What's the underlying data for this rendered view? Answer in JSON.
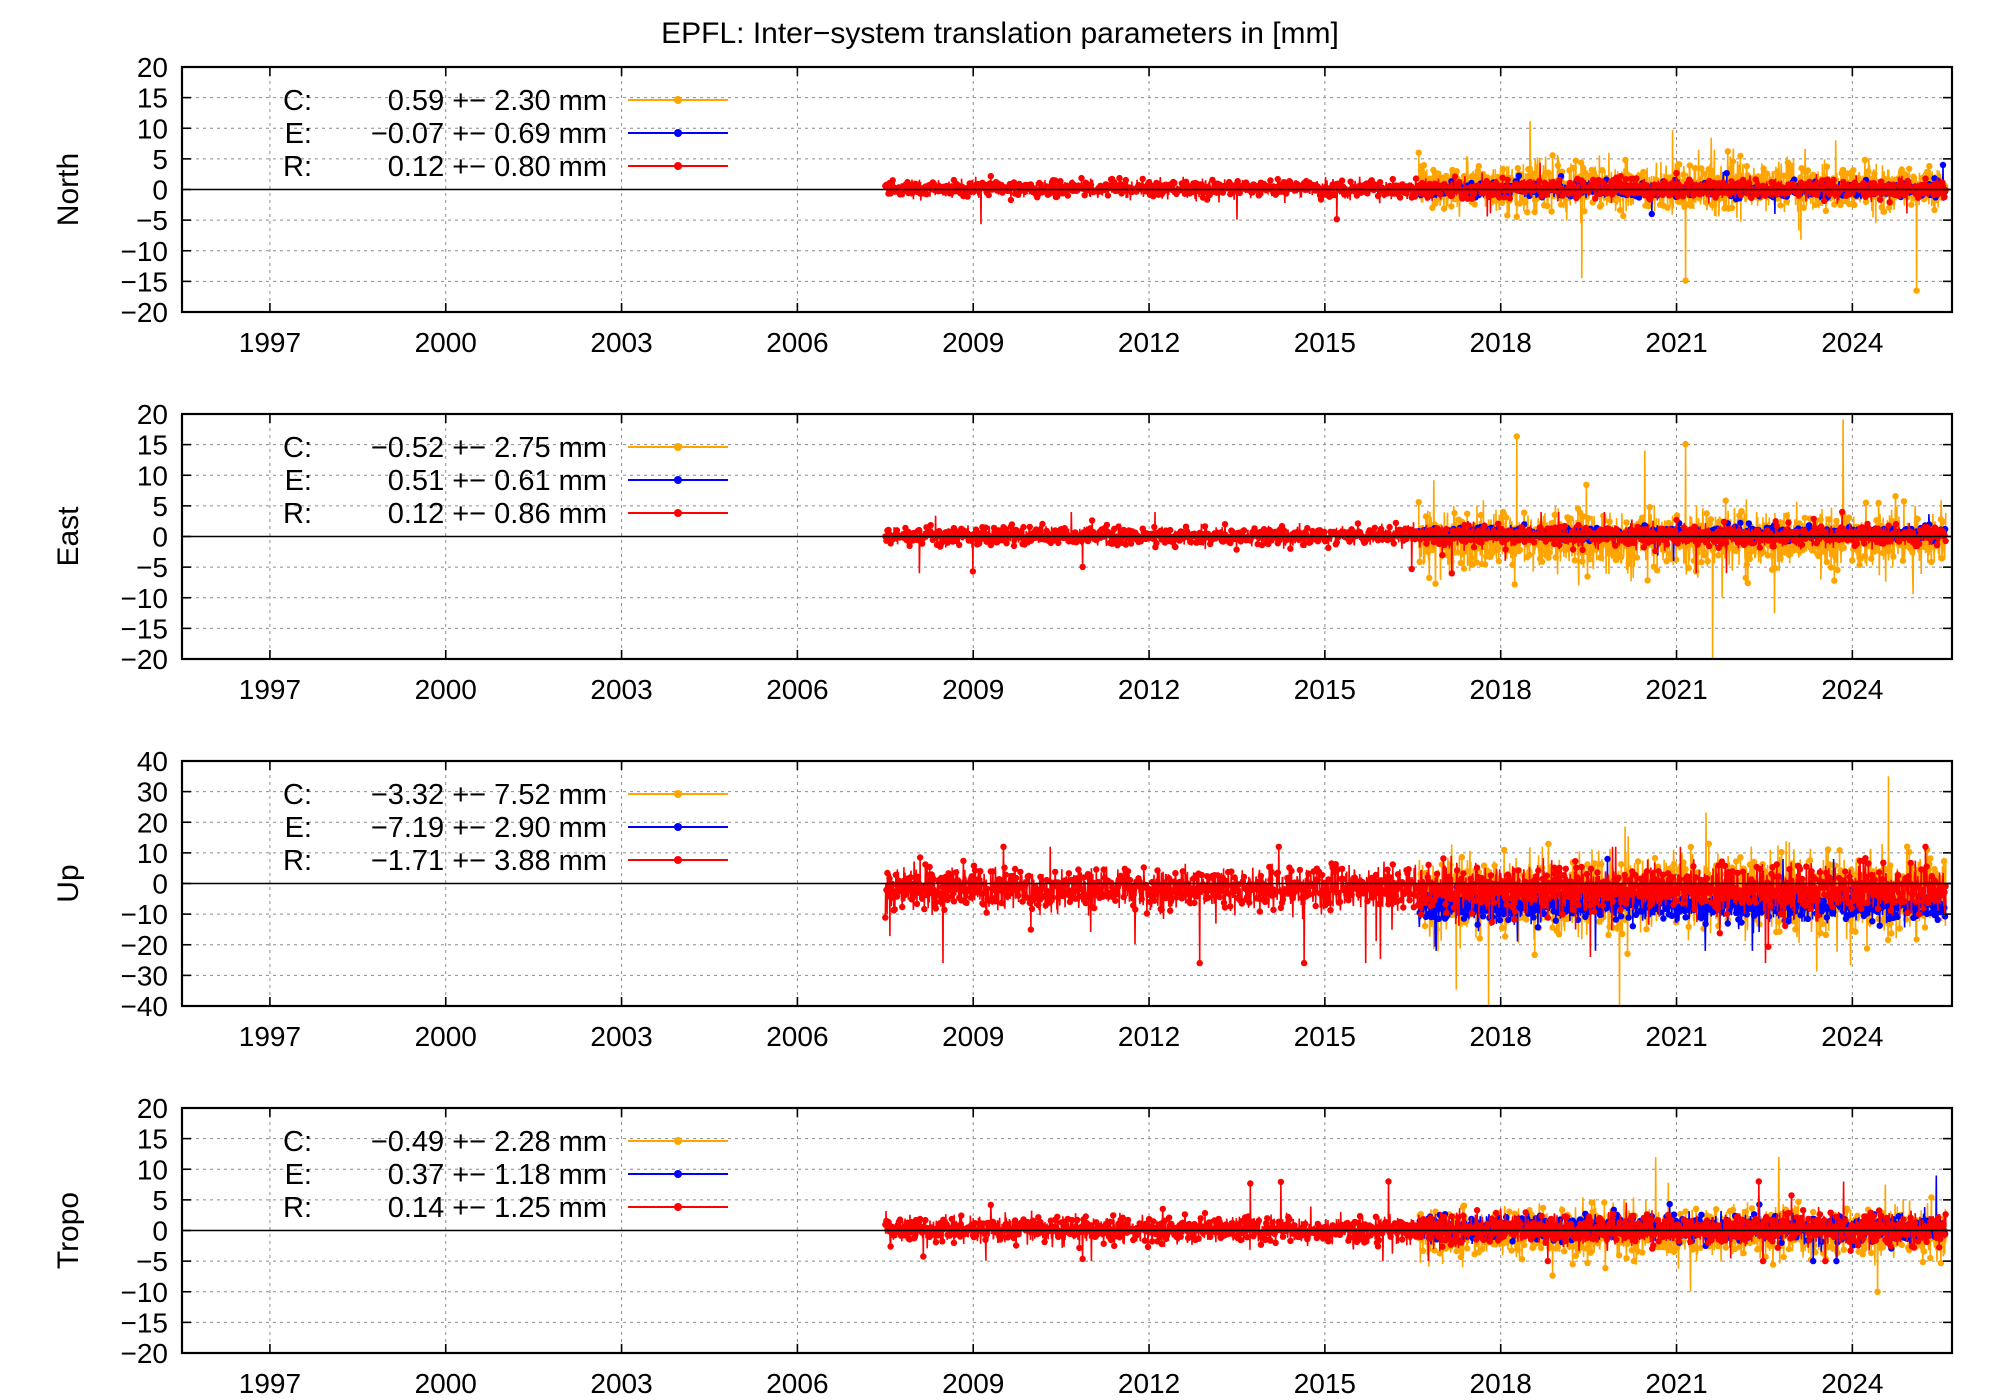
{
  "title": "EPFL: Inter−system translation parameters in [mm]",
  "colors": {
    "C": "#ffa500",
    "E": "#0000ff",
    "R": "#ff0000"
  },
  "chart_data": [
    {
      "type": "scatter",
      "ylabel": "North",
      "xlim": [
        1995.5,
        2025.7
      ],
      "ylim": [
        -20,
        20
      ],
      "x_ticks": [
        1997,
        2000,
        2003,
        2006,
        2009,
        2012,
        2015,
        2018,
        2021,
        2024
      ],
      "y_ticks": [
        -20,
        -15,
        -10,
        -5,
        0,
        5,
        10,
        15,
        20
      ],
      "grid": true,
      "legend_position": "top-left",
      "series": [
        {
          "name": "C",
          "legend": "C:  0.59 +− 2.30 mm",
          "x_range": [
            2016.6,
            2025.6
          ],
          "mean": 0.59,
          "rms": 2.3,
          "y_extent": [
            -20,
            11.5
          ]
        },
        {
          "name": "E",
          "legend": "E:  −0.07 +− 0.69 mm",
          "x_range": [
            2016.6,
            2025.6
          ],
          "mean": -0.07,
          "rms": 0.69,
          "y_extent": [
            -4,
            4
          ]
        },
        {
          "name": "R",
          "legend": "R:  0.12 +− 0.80 mm",
          "x_range": [
            2007.5,
            2025.6
          ],
          "mean": 0.12,
          "rms": 0.8,
          "y_extent": [
            -8,
            5
          ]
        }
      ]
    },
    {
      "type": "scatter",
      "ylabel": "East",
      "xlim": [
        1995.5,
        2025.7
      ],
      "ylim": [
        -20,
        20
      ],
      "x_ticks": [
        1997,
        2000,
        2003,
        2006,
        2009,
        2012,
        2015,
        2018,
        2021,
        2024
      ],
      "y_ticks": [
        -20,
        -15,
        -10,
        -5,
        0,
        5,
        10,
        15,
        20
      ],
      "grid": true,
      "legend_position": "top-left",
      "series": [
        {
          "name": "C",
          "legend": "C:  −0.52 +− 2.75 mm",
          "x_range": [
            2016.6,
            2025.6
          ],
          "mean": -0.52,
          "rms": 2.75,
          "y_extent": [
            -20,
            20
          ]
        },
        {
          "name": "E",
          "legend": "E:  0.51 +− 0.61 mm",
          "x_range": [
            2016.6,
            2025.6
          ],
          "mean": 0.51,
          "rms": 0.61,
          "y_extent": [
            -4,
            4
          ]
        },
        {
          "name": "R",
          "legend": "R:  0.12 +− 0.86 mm",
          "x_range": [
            2007.5,
            2025.6
          ],
          "mean": 0.12,
          "rms": 0.86,
          "y_extent": [
            -6,
            4
          ]
        }
      ]
    },
    {
      "type": "scatter",
      "ylabel": "Up",
      "xlim": [
        1995.5,
        2025.7
      ],
      "ylim": [
        -40,
        40
      ],
      "x_ticks": [
        1997,
        2000,
        2003,
        2006,
        2009,
        2012,
        2015,
        2018,
        2021,
        2024
      ],
      "y_ticks": [
        -40,
        -30,
        -20,
        -10,
        0,
        10,
        20,
        30,
        40
      ],
      "grid": true,
      "legend_position": "top-left",
      "series": [
        {
          "name": "C",
          "legend": "C:  −3.32 +− 7.52 mm",
          "x_range": [
            2016.6,
            2025.6
          ],
          "mean": -3.32,
          "rms": 7.52,
          "y_extent": [
            -40,
            35
          ]
        },
        {
          "name": "E",
          "legend": "E:  −7.19 +− 2.90 mm",
          "x_range": [
            2016.6,
            2025.6
          ],
          "mean": -7.19,
          "rms": 2.9,
          "y_extent": [
            -22,
            8
          ]
        },
        {
          "name": "R",
          "legend": "R:  −1.71 +− 3.88 mm",
          "x_range": [
            2007.5,
            2025.6
          ],
          "mean": -1.71,
          "rms": 3.88,
          "y_extent": [
            -26,
            12
          ]
        }
      ]
    },
    {
      "type": "scatter",
      "ylabel": "Tropo",
      "xlim": [
        1995.5,
        2025.7
      ],
      "ylim": [
        -20,
        20
      ],
      "x_ticks": [
        1997,
        2000,
        2003,
        2006,
        2009,
        2012,
        2015,
        2018,
        2021,
        2024
      ],
      "y_ticks": [
        -20,
        -15,
        -10,
        -5,
        0,
        5,
        10,
        15,
        20
      ],
      "grid": true,
      "legend_position": "top-left",
      "series": [
        {
          "name": "C",
          "legend": "C:  −0.49 +− 2.28 mm",
          "x_range": [
            2016.6,
            2025.6
          ],
          "mean": -0.49,
          "rms": 2.28,
          "y_extent": [
            -10,
            12
          ]
        },
        {
          "name": "E",
          "legend": "E:  0.37 +− 1.18 mm",
          "x_range": [
            2016.6,
            2025.6
          ],
          "mean": 0.37,
          "rms": 1.18,
          "y_extent": [
            -5,
            9
          ]
        },
        {
          "name": "R",
          "legend": "R:  0.14 +− 1.25 mm",
          "x_range": [
            2007.5,
            2025.6
          ],
          "mean": 0.14,
          "rms": 1.25,
          "y_extent": [
            -5,
            8
          ]
        }
      ]
    }
  ]
}
